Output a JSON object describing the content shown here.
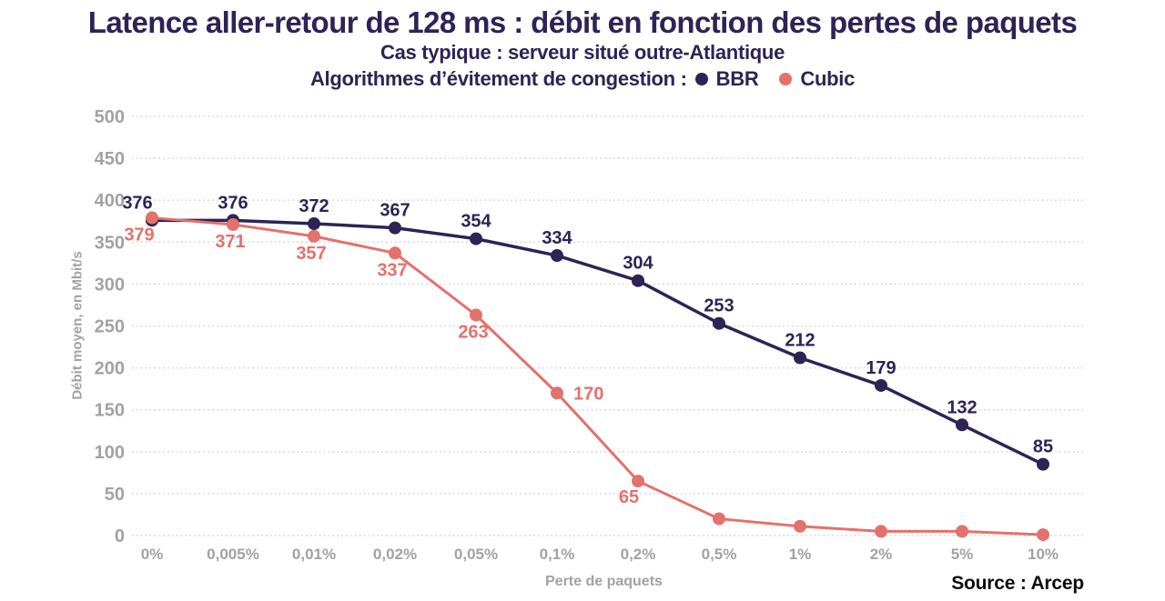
{
  "chart_data": {
    "type": "line",
    "title": "Latence aller-retour de 128 ms : débit en fonction des pertes de paquets",
    "subtitle": "Cas typique : serveur situé outre-Atlantique",
    "legend_prefix": "Algorithmes d’évitement de congestion :",
    "xlabel": "Perte de paquets",
    "ylabel": "Débit moyen, en Mbit/s",
    "source": "Source : Arcep",
    "categories": [
      "0%",
      "0,005%",
      "0,01%",
      "0,02%",
      "0,05%",
      "0,1%",
      "0,2%",
      "0,5%",
      "1%",
      "2%",
      "5%",
      "10%"
    ],
    "ylim": [
      0,
      500
    ],
    "ytick_step": 50,
    "grid": "horizontal-dotted",
    "legend_position": "top",
    "colors": {
      "bbr": "#2d2355",
      "cubic": "#e3716c",
      "axis_text": "#a2a2a2",
      "gridline": "#cfcfcf"
    },
    "series": [
      {
        "name": "BBR",
        "color": "#2d2355",
        "values": [
          376,
          376,
          372,
          367,
          354,
          334,
          304,
          253,
          212,
          179,
          132,
          85
        ],
        "point_labels": [
          "376",
          "376",
          "372",
          "367",
          "354",
          "334",
          "304",
          "253",
          "212",
          "179",
          "132",
          "85"
        ]
      },
      {
        "name": "Cubic",
        "color": "#e3716c",
        "values": [
          379,
          371,
          357,
          337,
          263,
          170,
          65,
          20,
          11,
          5,
          5,
          1
        ],
        "point_labels": [
          "379",
          "371",
          "357",
          "337",
          "263",
          "170",
          "65",
          null,
          null,
          null,
          null,
          null
        ]
      }
    ]
  }
}
